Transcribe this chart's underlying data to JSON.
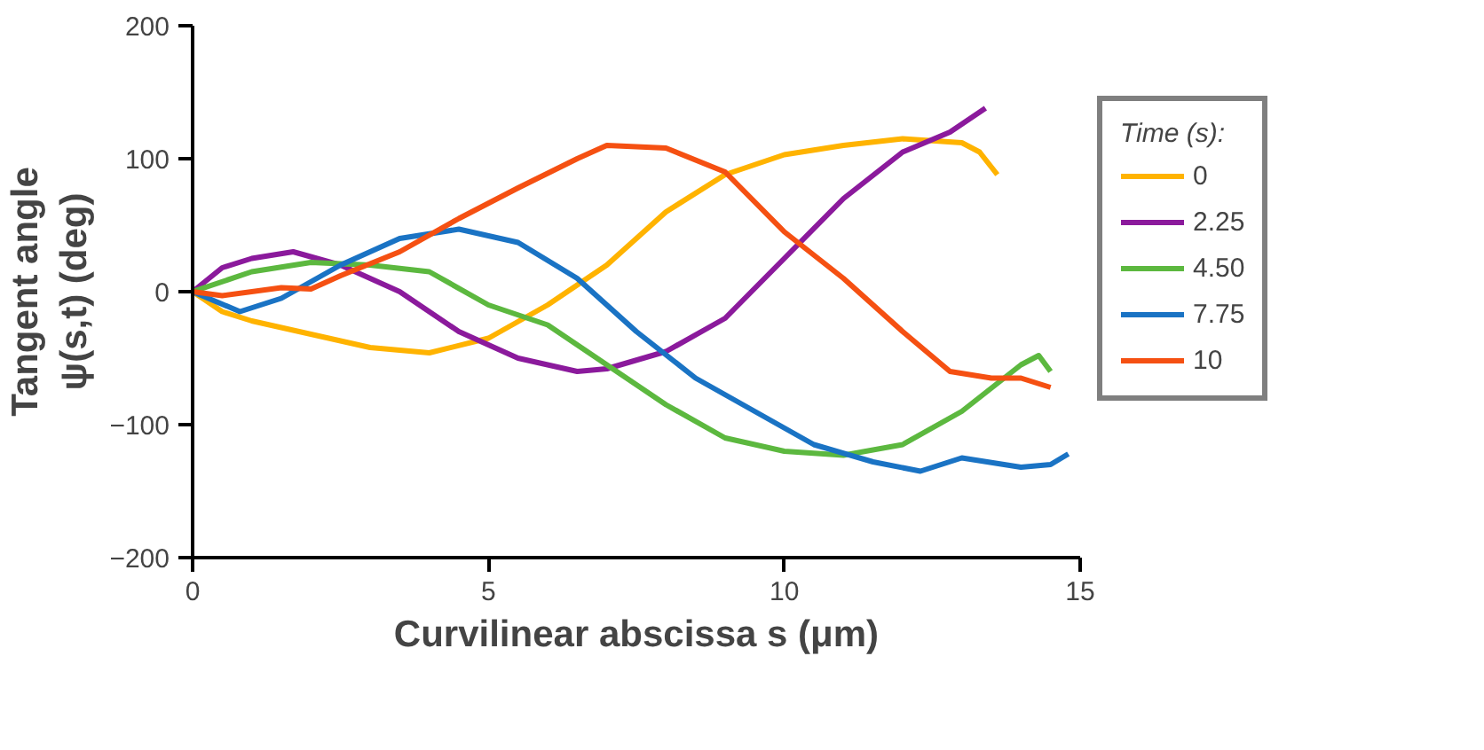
{
  "chart_data": {
    "type": "line",
    "xlabel": "Curvilinear abscissa s (μm)",
    "ylabel": "Tangent angle\nψ(s,t) (deg)",
    "legend_title": "Time (s):",
    "legend": "right",
    "grid": false,
    "line_style": "solid",
    "marker": "none",
    "xlim": [
      0,
      15
    ],
    "xticks": [
      0,
      5,
      10,
      15
    ],
    "ylim": [
      -200,
      200
    ],
    "yticks": [
      -200,
      -100,
      0,
      100,
      200
    ],
    "series": [
      {
        "name": "0",
        "color": "#ffb300",
        "x": [
          0,
          0.5,
          1,
          2,
          3,
          4,
          5,
          6,
          7,
          8,
          9,
          10,
          11,
          12,
          13,
          13.3,
          13.6
        ],
        "values": [
          0,
          -15,
          -22,
          -32,
          -42,
          -46,
          -35,
          -10,
          20,
          60,
          88,
          103,
          110,
          115,
          112,
          105,
          88
        ]
      },
      {
        "name": "2.25",
        "color": "#8b1a9c",
        "x": [
          0,
          0.5,
          1,
          1.7,
          2.5,
          3.5,
          4.5,
          5.5,
          6.5,
          7,
          8,
          9,
          10,
          11,
          12,
          12.8,
          13.4
        ],
        "values": [
          0,
          18,
          25,
          30,
          20,
          0,
          -30,
          -50,
          -60,
          -58,
          -45,
          -20,
          25,
          70,
          105,
          120,
          138
        ]
      },
      {
        "name": "4.50",
        "color": "#5cb83f",
        "x": [
          0,
          1,
          2,
          3,
          4,
          5,
          6,
          7,
          8,
          9,
          10,
          11,
          12,
          13,
          14,
          14.3,
          14.5
        ],
        "values": [
          0,
          15,
          22,
          20,
          15,
          -10,
          -25,
          -55,
          -85,
          -110,
          -120,
          -123,
          -115,
          -90,
          -55,
          -48,
          -60
        ]
      },
      {
        "name": "7.75",
        "color": "#1a73c4",
        "x": [
          0,
          0.8,
          1.5,
          2.5,
          3.5,
          4.5,
          5.5,
          6.5,
          7.5,
          8.5,
          9.5,
          10.5,
          11.5,
          12.3,
          13,
          14,
          14.5,
          14.8
        ],
        "values": [
          0,
          -15,
          -5,
          20,
          40,
          47,
          37,
          10,
          -30,
          -65,
          -90,
          -115,
          -128,
          -135,
          -125,
          -132,
          -130,
          -122
        ]
      },
      {
        "name": "10",
        "color": "#f55012",
        "x": [
          0,
          0.5,
          1.5,
          2,
          2.5,
          3.5,
          4.5,
          5.5,
          6.5,
          7,
          8,
          9,
          10,
          11,
          12,
          12.8,
          13.5,
          14,
          14.5
        ],
        "values": [
          0,
          -3,
          3,
          2,
          12,
          30,
          55,
          78,
          100,
          110,
          108,
          90,
          45,
          10,
          -30,
          -60,
          -65,
          -65,
          -72
        ]
      }
    ]
  }
}
